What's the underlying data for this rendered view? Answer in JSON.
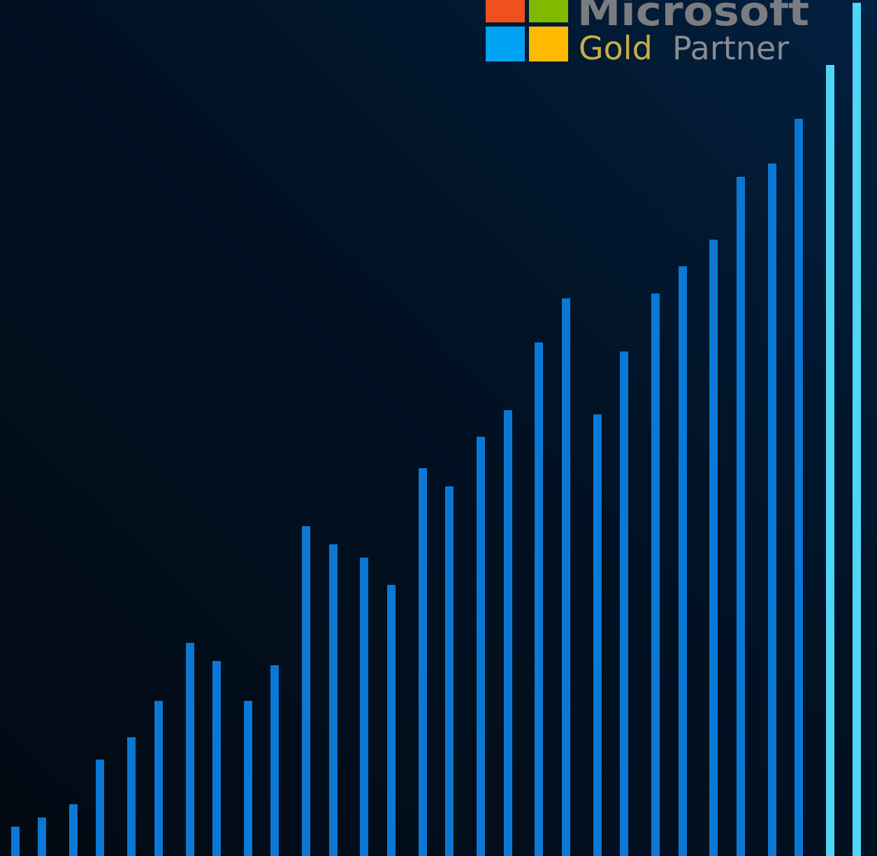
{
  "logo": {
    "brand": "Microsoft",
    "tier": "Gold",
    "program": "Partner"
  }
}
